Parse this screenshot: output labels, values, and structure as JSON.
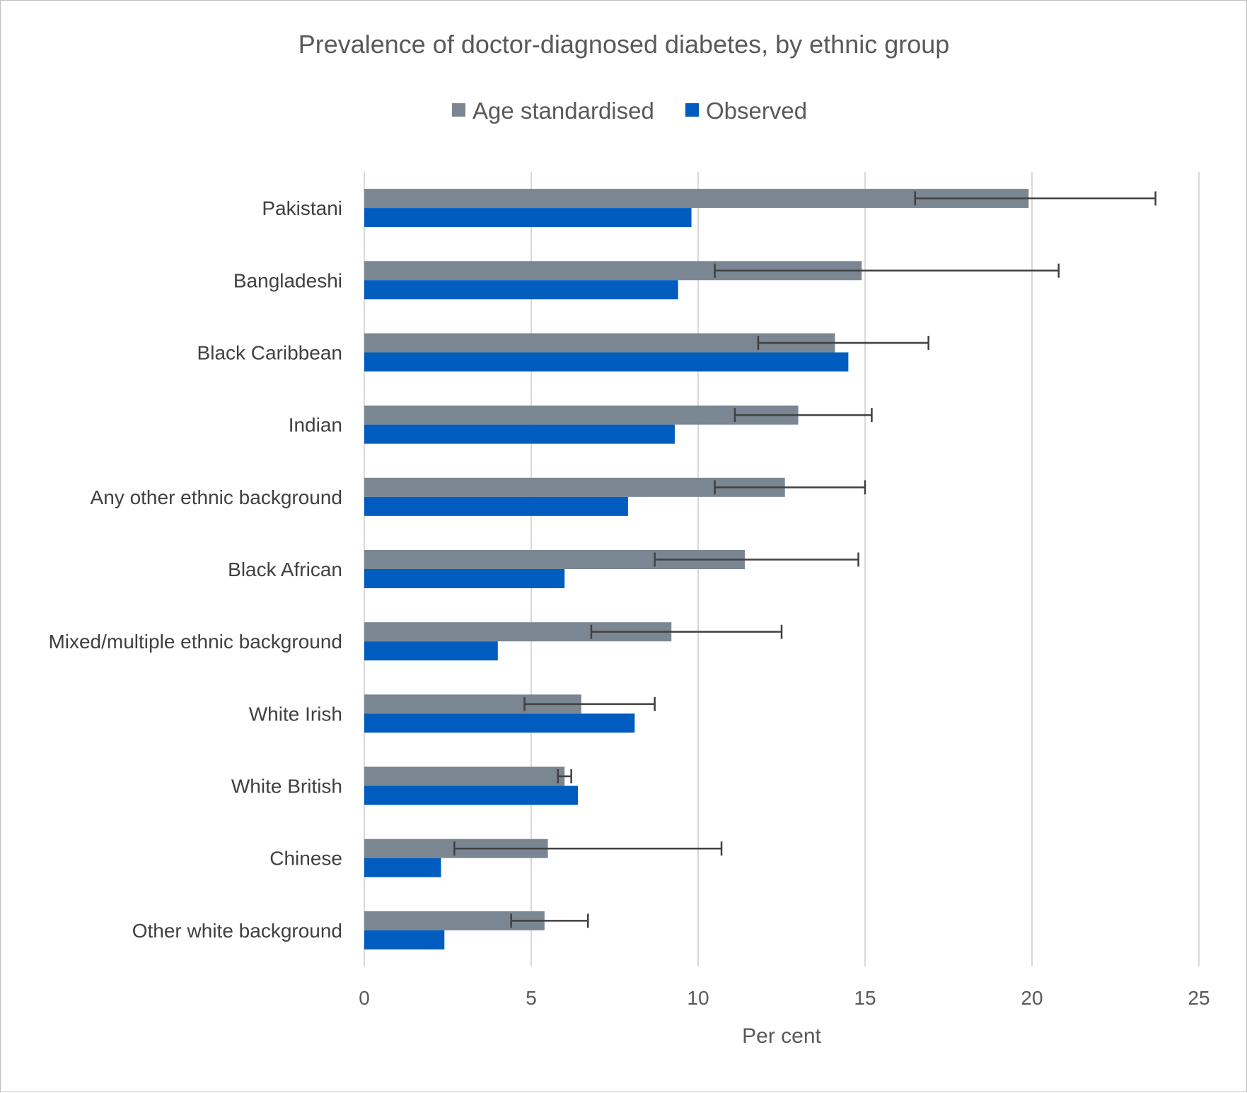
{
  "chart_data": {
    "type": "bar",
    "orientation": "horizontal",
    "title": "Prevalence of doctor-diagnosed diabetes, by ethnic group",
    "xlabel": "Per cent",
    "ylabel": "",
    "xlim": [
      0,
      25
    ],
    "x_ticks": [
      0,
      5,
      10,
      15,
      20,
      25
    ],
    "x_tick_labels": [
      "0",
      "5",
      "10",
      "15",
      "20",
      "25"
    ],
    "grid": "vertical",
    "legend_position": "top",
    "categories": [
      "Pakistani",
      "Bangladeshi",
      "Black Caribbean",
      "Indian",
      "Any other ethnic background",
      "Black African",
      "Mixed/multiple ethnic background",
      "White Irish",
      "White British",
      "Chinese",
      "Other white background"
    ],
    "series": [
      {
        "name": "Age standardised",
        "color": "#7a8793",
        "values": [
          19.9,
          14.9,
          14.1,
          13.0,
          12.6,
          11.4,
          9.2,
          6.5,
          6.0,
          5.5,
          5.4
        ],
        "error_low": [
          16.5,
          10.5,
          11.8,
          11.1,
          10.5,
          8.7,
          6.8,
          4.8,
          5.8,
          2.7,
          4.4
        ],
        "error_high": [
          23.7,
          20.8,
          16.9,
          15.2,
          15.0,
          14.8,
          12.5,
          8.7,
          6.2,
          10.7,
          6.7
        ]
      },
      {
        "name": "Observed",
        "color": "#005dbf",
        "values": [
          9.8,
          9.4,
          14.5,
          9.3,
          7.9,
          6.0,
          4.0,
          8.1,
          6.4,
          2.3,
          2.4
        ]
      }
    ]
  },
  "colors": {
    "age_standardised": "#7a8793",
    "observed": "#005dbf",
    "error_bar": "#404040",
    "gridline": "#d9d9d9",
    "text": "#595959"
  }
}
